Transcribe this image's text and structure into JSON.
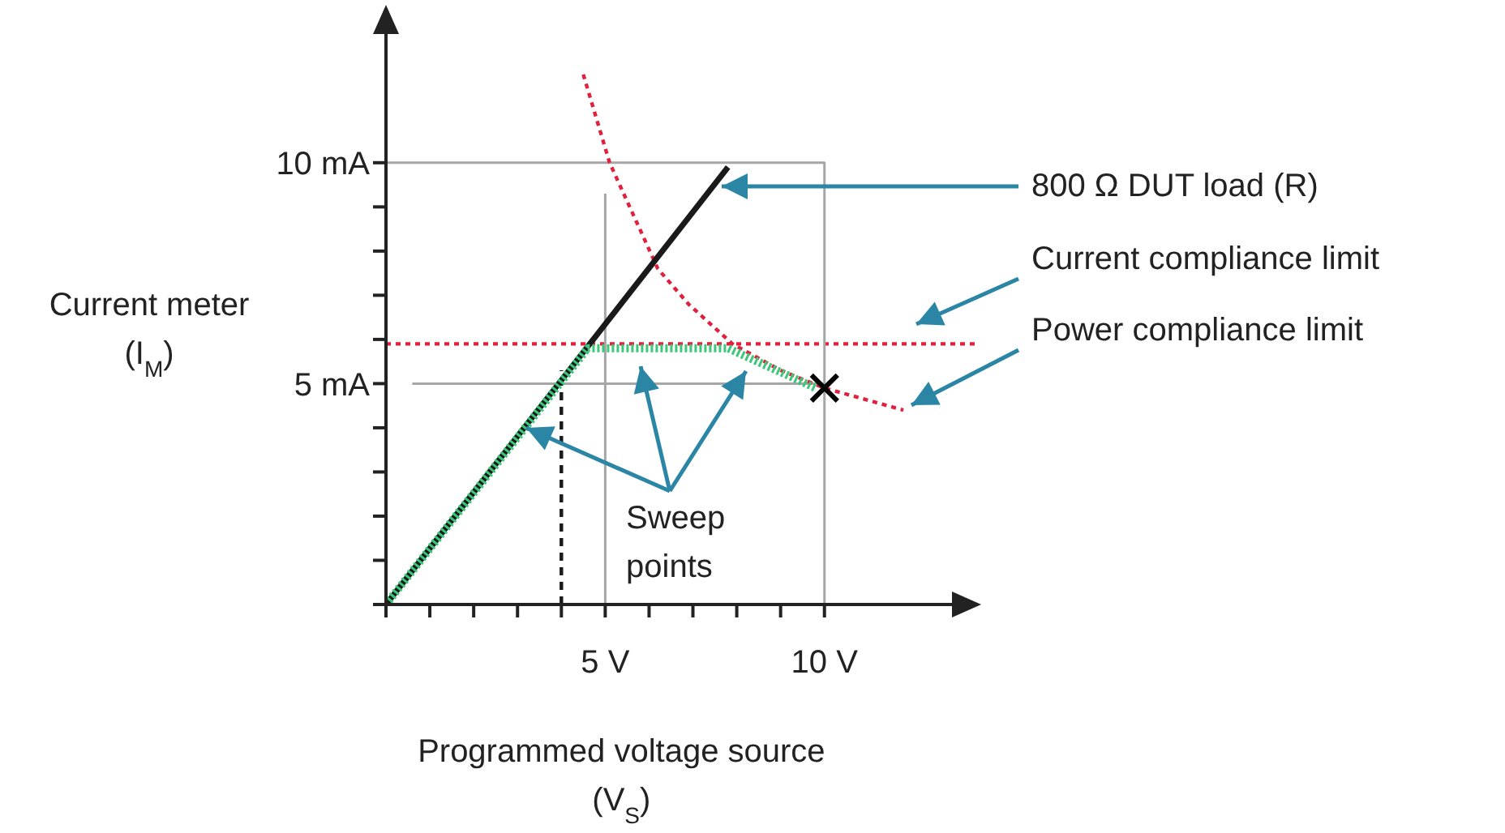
{
  "chart_data": {
    "type": "line",
    "xlabel": "Programmed voltage source\n(V$_{S}$)",
    "ylabel": "Current meter\n(I$_{M}$)",
    "xlim": [
      0,
      13.5
    ],
    "ylim": [
      0,
      13.5
    ],
    "xticks": [
      {
        "value": 0,
        "label": null
      },
      {
        "value": 1,
        "label": null
      },
      {
        "value": 2,
        "label": null
      },
      {
        "value": 3,
        "label": null
      },
      {
        "value": 4,
        "label": null
      },
      {
        "value": 5,
        "label": "5 V"
      },
      {
        "value": 6,
        "label": null
      },
      {
        "value": 7,
        "label": null
      },
      {
        "value": 8,
        "label": null
      },
      {
        "value": 9,
        "label": null
      },
      {
        "value": 10,
        "label": "10 V"
      }
    ],
    "yticks": [
      {
        "value": 0,
        "label": null
      },
      {
        "value": 1,
        "label": null
      },
      {
        "value": 2,
        "label": null
      },
      {
        "value": 3,
        "label": null
      },
      {
        "value": 4,
        "label": null
      },
      {
        "value": 5,
        "label": "5 mA"
      },
      {
        "value": 6,
        "label": null
      },
      {
        "value": 7,
        "label": null
      },
      {
        "value": 8,
        "label": null
      },
      {
        "value": 9,
        "label": null
      },
      {
        "value": 10,
        "label": "10 mA"
      }
    ],
    "series": [
      {
        "x": [
          0,
          10,
          10
        ],
        "values": [
          10,
          10,
          0
        ],
        "color": "#a6a6a6"
      },
      {
        "x": [
          5,
          5
        ],
        "values": [
          0,
          9.3
        ],
        "color": "#a6a6a6"
      },
      {
        "x": [
          0.6,
          10
        ],
        "values": [
          5,
          5
        ],
        "color": "#a6a6a6"
      },
      {
        "x": [
          4,
          4
        ],
        "values": [
          0,
          5.3
        ],
        "color": "#1a1a1a",
        "line_style": "dashed"
      },
      {
        "x": [
          4.5,
          5.1,
          6.2,
          6.9,
          7.9,
          9,
          10,
          11.8
        ],
        "values": [
          12,
          10,
          7.6,
          6.8,
          5.9,
          5.3,
          4.9,
          4.4
        ],
        "color": "#e0203c",
        "line_style": "dotted"
      },
      {
        "x": [
          0,
          7.8
        ],
        "values": [
          0,
          9.9
        ],
        "color": "#1a1a1a"
      },
      {
        "x": [
          0,
          4.6,
          7.8,
          9.8
        ],
        "values": [
          0,
          5.8,
          5.8,
          4.9
        ],
        "color": "#3cc87a",
        "line_style": "dotted"
      },
      {
        "type": "scatter",
        "x": [
          10
        ],
        "values": [
          4.9
        ],
        "color": "#000000",
        "marker": "cross"
      }
    ],
    "ref_lines": [
      {
        "axis": "y",
        "value": 5.9,
        "color": "#e0203c",
        "line_style": "dotted"
      }
    ],
    "annotations": [
      "800 Ω DUT load (R)",
      "Current compliance limit",
      "Power compliance limit",
      {
        "text": "Sweep\npoints",
        "x": 3.2,
        "y": 4.0
      }
    ]
  }
}
